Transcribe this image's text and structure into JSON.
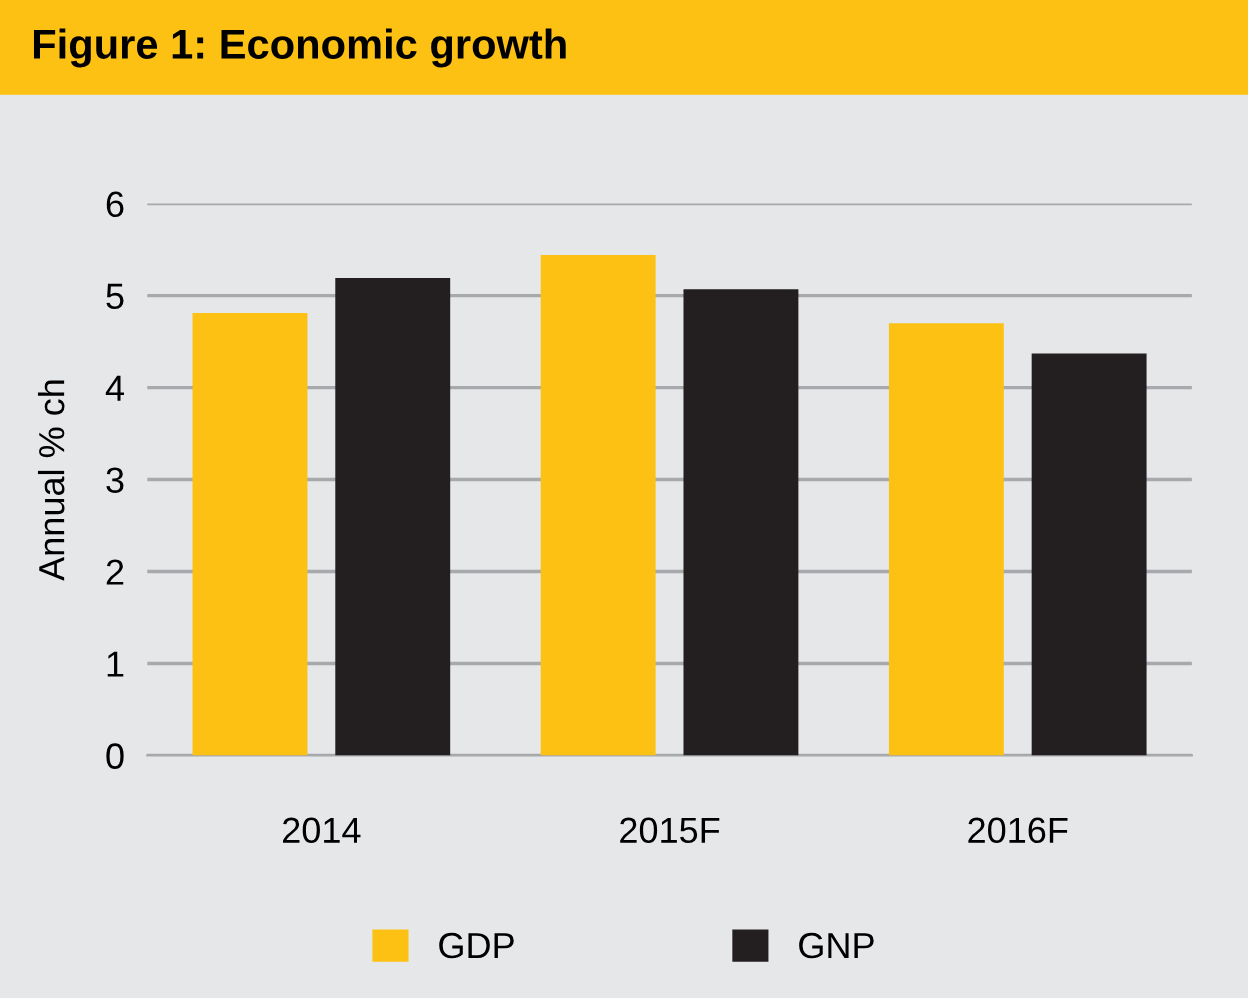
{
  "chart_data": {
    "type": "bar",
    "title": "Figure 1: Economic growth",
    "ylabel": "Annual % ch",
    "categories": [
      "2014",
      "2015F",
      "2016F"
    ],
    "series": [
      {
        "name": "GDP",
        "color": "#fdc113",
        "values": [
          4.81,
          5.44,
          4.7
        ]
      },
      {
        "name": "GNP",
        "color": "#231f20",
        "values": [
          5.19,
          5.07,
          4.37
        ]
      }
    ],
    "ylim": [
      0,
      6
    ],
    "yticks": [
      0,
      1,
      2,
      3,
      4,
      5,
      6
    ],
    "grid": "y",
    "legend": "bottom"
  }
}
